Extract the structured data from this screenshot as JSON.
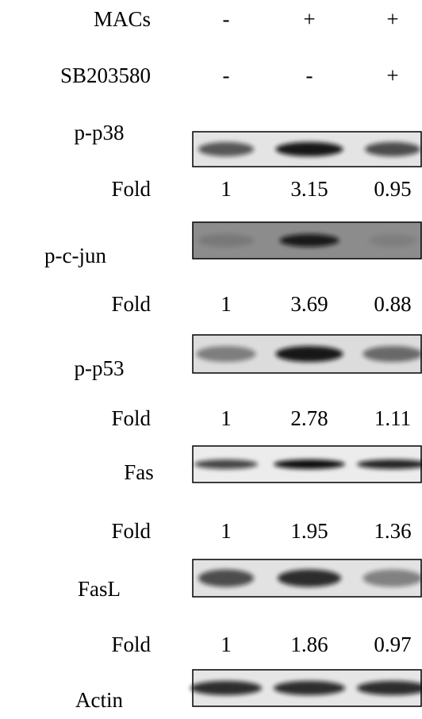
{
  "treatments": [
    {
      "label": "MACs",
      "values": [
        "-",
        "+",
        "+"
      ]
    },
    {
      "label": "SB203580",
      "values": [
        "-",
        "-",
        "+"
      ]
    }
  ],
  "blots": [
    {
      "label": "p-p38",
      "fold_label": "Fold",
      "fold": [
        1,
        3.15,
        0.95
      ]
    },
    {
      "label": "p-c-jun",
      "fold_label": "Fold",
      "fold": [
        1,
        3.69,
        0.88
      ]
    },
    {
      "label": "p-p53",
      "fold_label": "Fold",
      "fold": [
        1,
        2.78,
        1.11
      ]
    },
    {
      "label": "Fas",
      "fold_label": "Fold",
      "fold": [
        1,
        1.95,
        1.36
      ]
    },
    {
      "label": "FasL",
      "fold_label": "Fold",
      "fold": [
        1,
        1.86,
        0.97
      ]
    },
    {
      "label": "Actin"
    }
  ]
}
